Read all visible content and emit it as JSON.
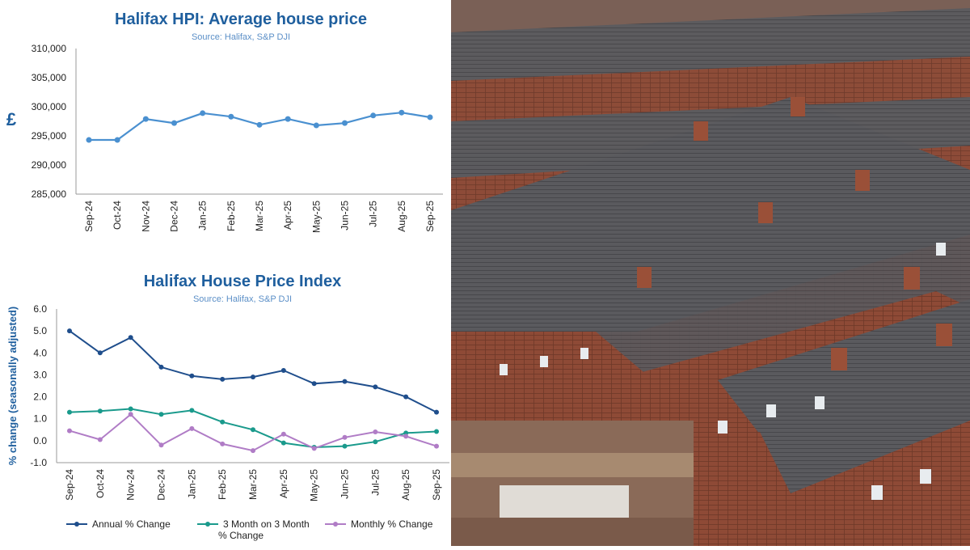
{
  "chart_data": [
    {
      "type": "line",
      "title": "Halifax HPI: Average house price",
      "subtitle": "Source: Halifax, S&P DJI",
      "ylabel": "£",
      "xlabel": "",
      "categories": [
        "Sep-24",
        "Oct-24",
        "Nov-24",
        "Dec-24",
        "Jan-25",
        "Feb-25",
        "Mar-25",
        "Apr-25",
        "May-25",
        "Jun-25",
        "Jul-25",
        "Aug-25",
        "Sep-25"
      ],
      "yticks": [
        "310,000",
        "305,000",
        "300,000",
        "295,000",
        "290,000",
        "285,000"
      ],
      "ylim": [
        285000,
        310000
      ],
      "grid": false,
      "series": [
        {
          "values": [
            294300,
            294300,
            297900,
            297200,
            298900,
            298300,
            296900,
            297900,
            296800,
            297200,
            298500,
            299000,
            298200
          ],
          "color": "#4a90d0"
        }
      ]
    },
    {
      "type": "line",
      "title": "Halifax House Price Index",
      "subtitle": "Source: Halifax,  S&P DJI",
      "ylabel": "% change (seasonally adjusted)",
      "xlabel": "",
      "categories": [
        "Sep-24",
        "Oct-24",
        "Nov-24",
        "Dec-24",
        "Jan-25",
        "Feb-25",
        "Mar-25",
        "Apr-25",
        "May-25",
        "Jun-25",
        "Jul-25",
        "Aug-25",
        "Sep-25"
      ],
      "yticks": [
        "6.0",
        "5.0",
        "4.0",
        "3.0",
        "2.0",
        "1.0",
        "0.0",
        "-1.0"
      ],
      "ylim": [
        -1.0,
        6.0
      ],
      "grid": false,
      "legend_position": "bottom",
      "series": [
        {
          "name": "Annual % Change",
          "color": "#1f4e8c",
          "values": [
            5.0,
            4.0,
            4.7,
            3.35,
            2.95,
            2.8,
            2.9,
            3.2,
            2.6,
            2.7,
            2.45,
            2.0,
            1.3
          ]
        },
        {
          "name": "3 Month on 3 Month % Change",
          "color": "#1a9a8c",
          "values": [
            1.3,
            1.35,
            1.45,
            1.2,
            1.38,
            0.85,
            0.5,
            -0.1,
            -0.3,
            -0.25,
            -0.05,
            0.35,
            0.42
          ]
        },
        {
          "name": "Monthly % Change",
          "color": "#b07cc6",
          "values": [
            0.45,
            0.05,
            1.2,
            -0.2,
            0.55,
            -0.15,
            -0.45,
            0.3,
            -0.35,
            0.15,
            0.4,
            0.2,
            -0.25
          ]
        }
      ]
    }
  ]
}
